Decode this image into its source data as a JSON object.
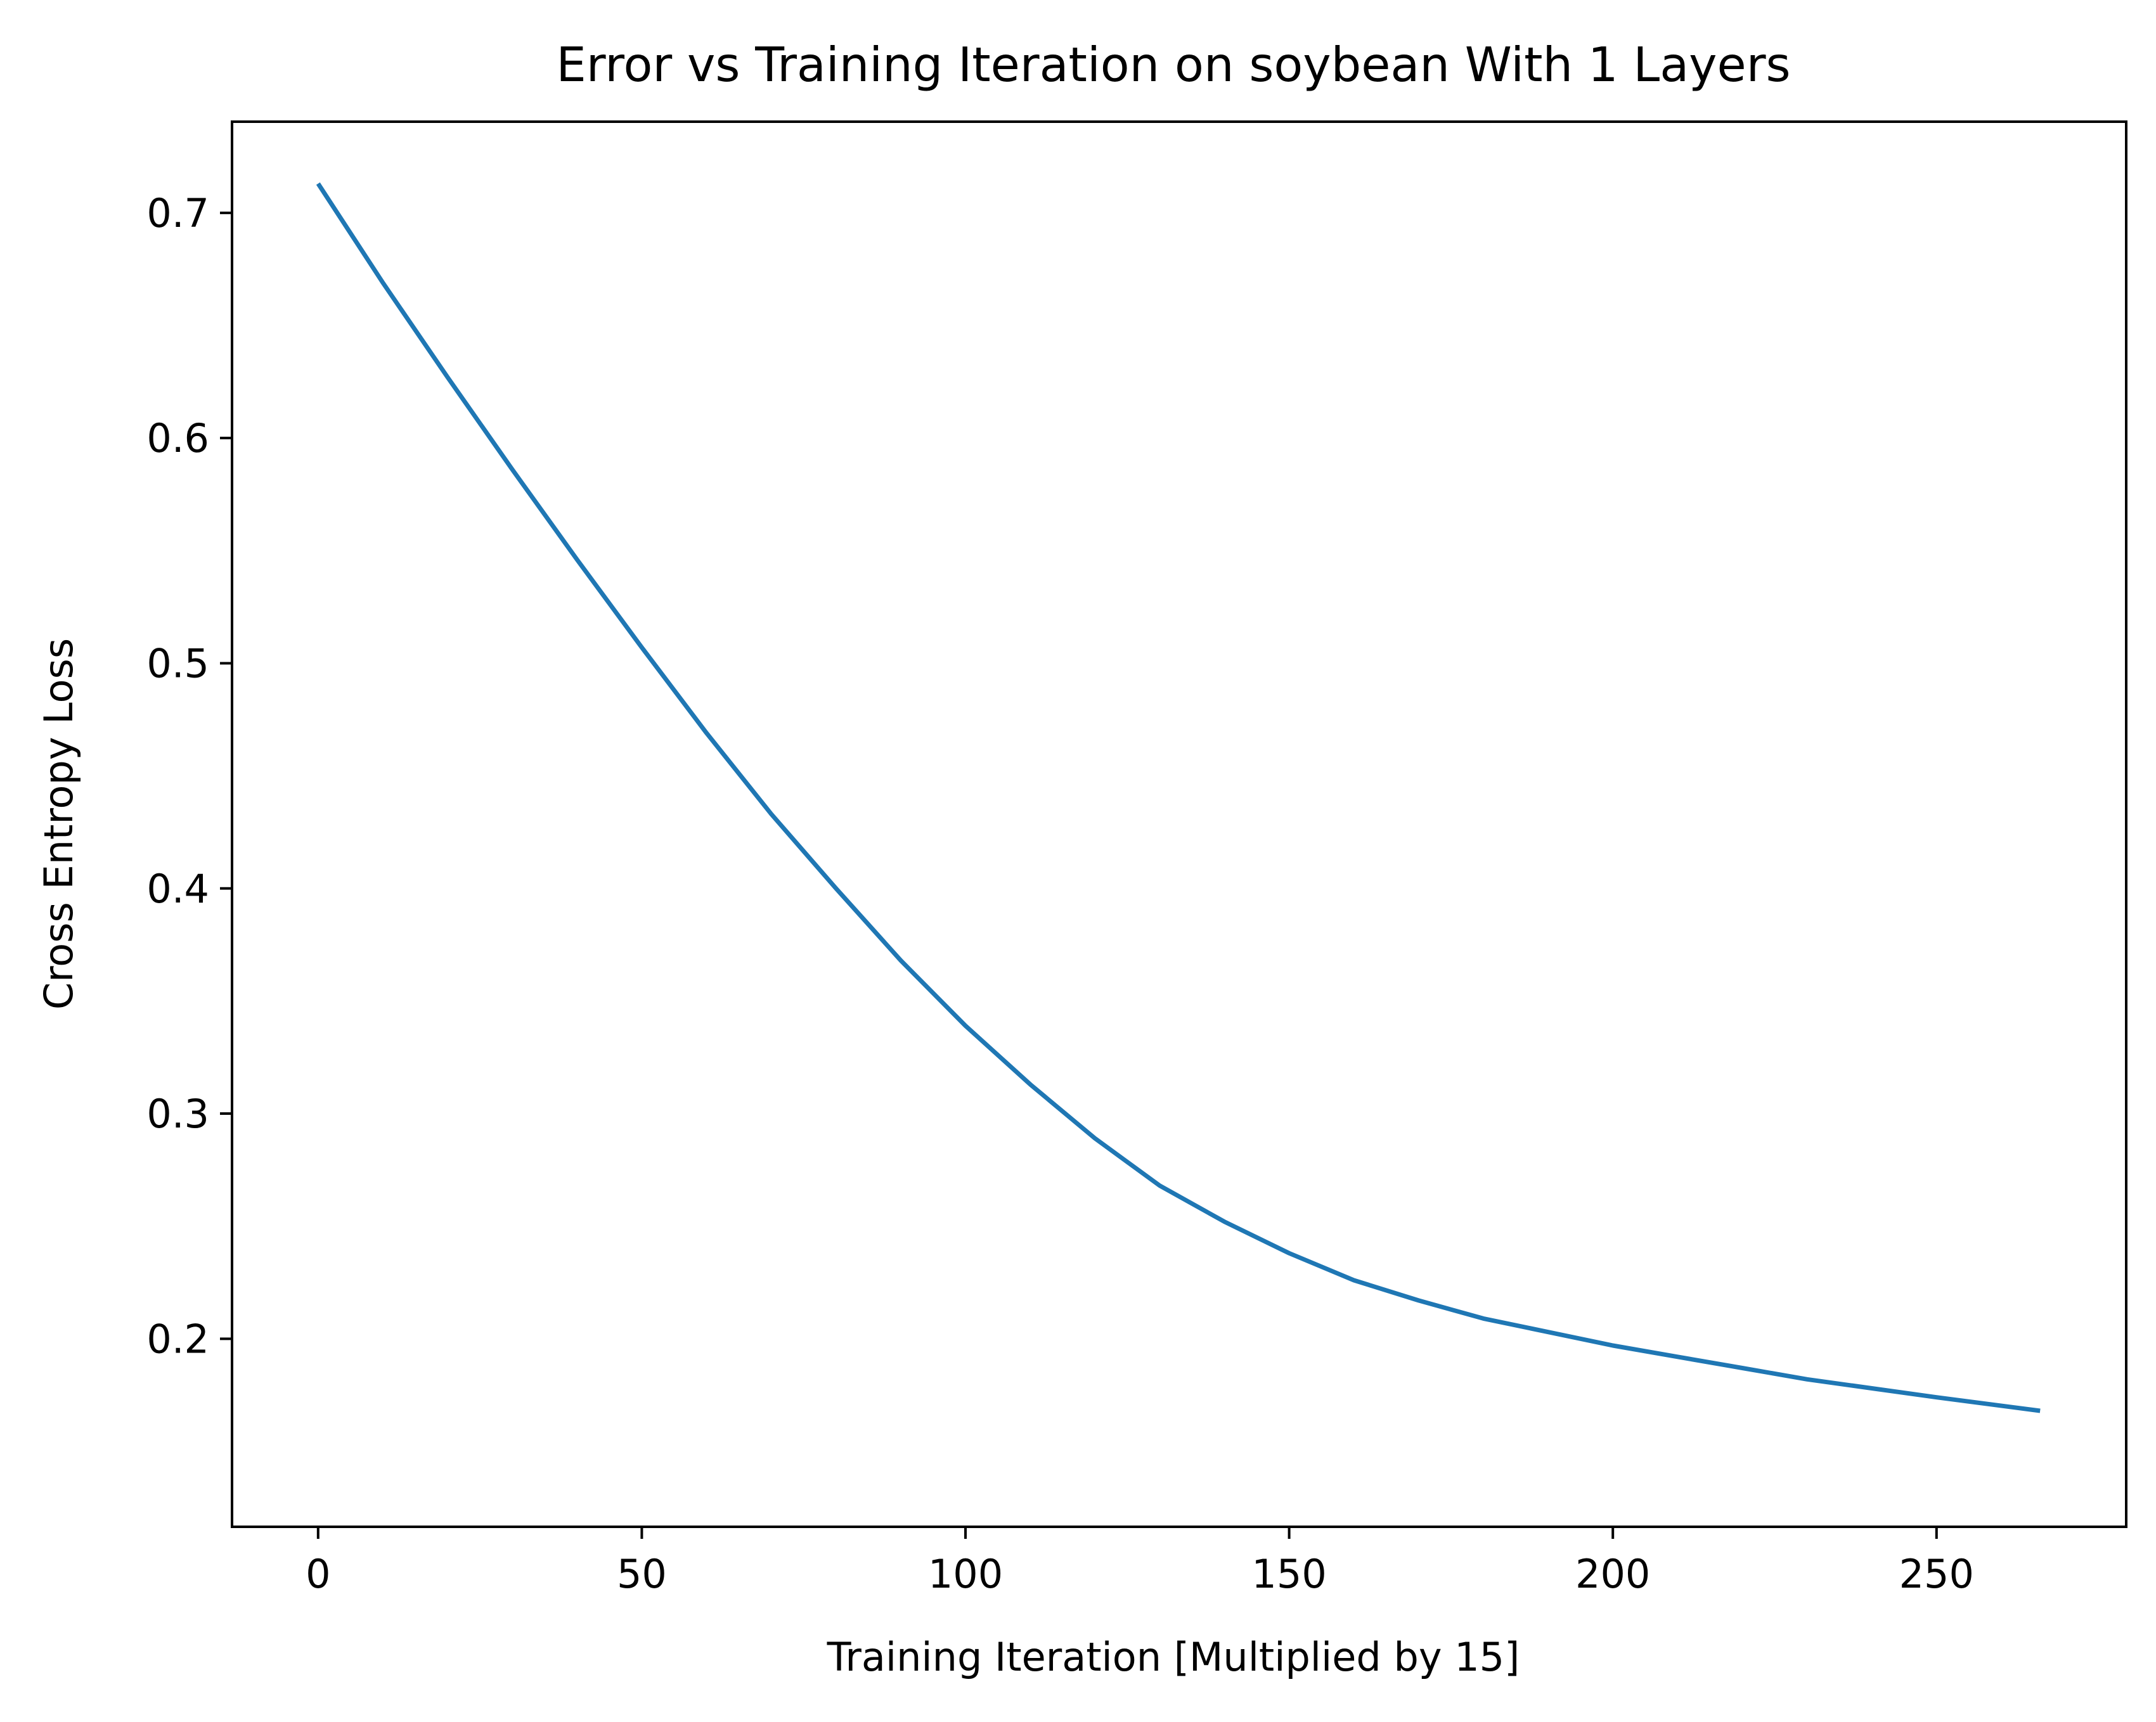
{
  "chart_data": {
    "type": "line",
    "title": "Error vs Training Iteration on soybean With 1 Layers",
    "xlabel": "Training Iteration [Multiplied by 15]",
    "ylabel": "Cross Entropy Loss",
    "xlim": [
      -13.3,
      279.3
    ],
    "ylim": [
      0.1165,
      0.7405
    ],
    "xticks": [
      0,
      50,
      100,
      150,
      200,
      250
    ],
    "xtick_labels": [
      "0",
      "50",
      "100",
      "150",
      "200",
      "250"
    ],
    "yticks": [
      0.2,
      0.3,
      0.4,
      0.5,
      0.6,
      0.7
    ],
    "ytick_labels": [
      "0.2",
      "0.3",
      "0.4",
      "0.5",
      "0.6",
      "0.7"
    ],
    "grid": false,
    "series": [
      {
        "color": "#1f77b4",
        "x": [
          0,
          10,
          20,
          30,
          40,
          50,
          60,
          70,
          80,
          90,
          100,
          110,
          120,
          130,
          140,
          150,
          160,
          170,
          180,
          190,
          200,
          210,
          220,
          230,
          240,
          250,
          266
        ],
        "y": [
          0.713,
          0.669,
          0.627,
          0.586,
          0.546,
          0.507,
          0.469,
          0.433,
          0.4,
          0.368,
          0.339,
          0.313,
          0.289,
          0.268,
          0.252,
          0.238,
          0.226,
          0.217,
          0.209,
          0.203,
          0.197,
          0.192,
          0.187,
          0.182,
          0.178,
          0.174,
          0.168
        ]
      }
    ]
  }
}
